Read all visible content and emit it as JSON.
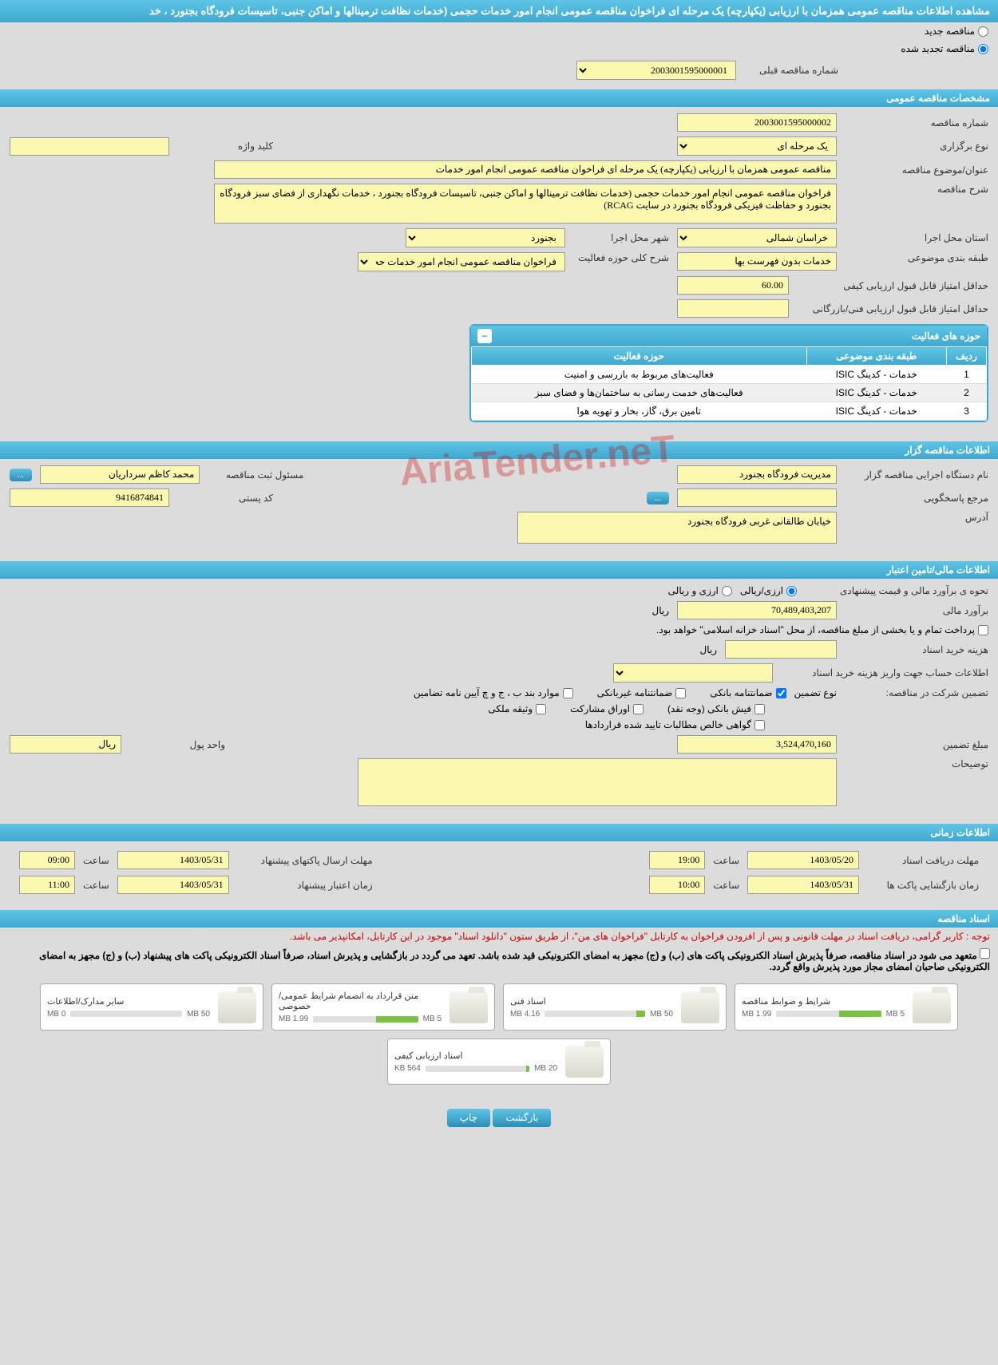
{
  "header": {
    "title": "مشاهده اطلاعات مناقصه عمومی همزمان با ارزیابی (یکپارچه) یک مرحله ای فراخوان مناقصه عمومی انجام امور خدمات حجمی (خدمات نظافت ترمینالها و اماکن جنبی، تاسیسات فرودگاه بجنورد ، خد"
  },
  "radio_options": {
    "new": "مناقصه جدید",
    "renewed": "مناقصه تجدید شده"
  },
  "prev_number": {
    "label": "شماره مناقصه قبلی",
    "value": "2003001595000001"
  },
  "sections": {
    "general": "مشخصات مناقصه عمومی",
    "holder": "اطلاعات مناقصه گزار",
    "financial": "اطلاعات مالی/تامین اعتبار",
    "time": "اطلاعات زمانی",
    "docs": "اسناد مناقصه"
  },
  "general": {
    "number_label": "شماره مناقصه",
    "number": "2003001595000002",
    "type_label": "نوع برگزاری",
    "type": "یک مرحله ای",
    "keyword_label": "کلید واژه",
    "keyword": "",
    "subject_label": "عنوان/موضوع مناقصه",
    "subject": "مناقصه عمومی همزمان با ارزیابی (یکپارچه) یک مرحله ای فراخوان مناقصه عمومی انجام امور خدمات",
    "desc_label": "شرح مناقصه",
    "desc": "فراخوان مناقصه عمومی انجام امور خدمات حجمی (خدمات نظافت ترمینالها و اماکن جنبی، تاسیسات فرودگاه بجنورد ، خدمات نگهداری از فضای سبز فرودگاه بجنورد و حفاظت فیزیکی فرودگاه بجنورد در سایت RCAG)",
    "province_label": "استان محل اجرا",
    "province": "خراسان شمالی",
    "city_label": "شهر محل اجرا",
    "city": "بجنورد",
    "category_label": "طبقه بندی موضوعی",
    "category": "خدمات بدون فهرست بها",
    "activity_desc_label": "شرح کلی حوزه فعالیت",
    "activity_desc": "فراخوان مناقصه عمومی انجام امور خدمات حجمی",
    "qual_score_label": "حداقل امتیاز قابل قبول ارزیابی کیفی",
    "qual_score": "60.00",
    "tech_score_label": "حداقل امتیاز قابل قبول ارزیابی فنی/بازرگانی",
    "tech_score": ""
  },
  "activities": {
    "title": "حوزه های فعالیت",
    "col_row": "ردیف",
    "col_category": "طبقه بندی موضوعی",
    "col_activity": "حوزه فعالیت",
    "rows": [
      {
        "n": "1",
        "cat": "خدمات - کدینگ ISIC",
        "act": "فعالیت‌های مربوط به بازرسی و امنیت"
      },
      {
        "n": "2",
        "cat": "خدمات - کدینگ ISIC",
        "act": "فعالیت‌های خدمت رسانی به ساختمان‌ها و فضای سبز"
      },
      {
        "n": "3",
        "cat": "خدمات - کدینگ ISIC",
        "act": "تامین برق، گاز، بخار و تهویه هوا"
      }
    ]
  },
  "holder": {
    "org_label": "نام دستگاه اجرایی مناقصه گزار",
    "org": "مدیریت فرودگاه بجنورد",
    "responsible_label": "مسئول ثبت مناقصه",
    "responsible": "محمد کاظم سرداریان",
    "contact_label": "مرجع پاسخگویی",
    "postal_label": "کد پستی",
    "postal": "9416874841",
    "address_label": "آدرس",
    "address": "خیابان طالقانی غربی فرودگاه بجنورد"
  },
  "financial": {
    "est_type_label": "نحوه ی برآورد مالی و قیمت پیشنهادی",
    "est_type_opt1": "ارزی/ریالی",
    "est_type_opt2": "ارزی و ریالی",
    "est_label": "برآورد مالی",
    "est": "70,489,403,207",
    "currency": "ریال",
    "pay_note": "پرداخت تمام و یا بخشی از مبلغ مناقصه، از محل \"اسناد خزانه اسلامی\" خواهد بود.",
    "cost_label": "هزینه خرید اسناد",
    "cost": "",
    "account_label": "اطلاعات حساب جهت واریز هزینه خرید اسناد",
    "guarantee_label": "تضمین شرکت در مناقصه:",
    "guarantee_type_label": "نوع تضمین",
    "g1": "ضمانتنامه بانکی",
    "g2": "ضمانتنامه غیربانکی",
    "g3": "موارد بند ب ، ج و چ آیین نامه تضامین",
    "g4": "فیش بانکی (وجه نقد)",
    "g5": "اوراق مشارکت",
    "g6": "وثیقه ملکی",
    "g7": "گواهی خالص مطالبات تایید شده قراردادها",
    "amount_label": "مبلغ تضمین",
    "amount": "3,524,470,160",
    "unit_label": "واحد پول",
    "unit": "ریال",
    "explain_label": "توضیحات"
  },
  "time": {
    "doc_deadline_label": "مهلت دریافت اسناد",
    "doc_deadline_date": "1403/05/20",
    "doc_deadline_time": "19:00",
    "time_label": "ساعت",
    "packet_deadline_label": "مهلت ارسال پاکتهای پیشنهاد",
    "packet_deadline_date": "1403/05/31",
    "packet_deadline_time": "09:00",
    "open_label": "زمان بازگشایی پاکت ها",
    "open_date": "1403/05/31",
    "open_time": "10:00",
    "validity_label": "زمان اعتبار پیشنهاد",
    "validity_date": "1403/05/31",
    "validity_time": "11:00"
  },
  "docs": {
    "note_red": "توجه : کاربر گرامی، دریافت اسناد در مهلت قانونی و پس از افزودن فراخوان به کارتابل \"فراخوان های من\"، از طریق ستون \"دانلود اسناد\" موجود در این کارتابل، امکانپذیر می باشد.",
    "note_black": "متعهد می شود در اسناد مناقصه، صرفاً پذیرش اسناد الکترونیکی پاکت های (ب) و (ج) مجهز به امضای الکترونیکی قید شده باشد. تعهد می گردد در بازگشایی و پذیرش اسناد، صرفاً اسناد الکترونیکی پاکت های پیشنهاد (ب) و (ج) مجهز به امضای الکترونیکی صاحبان امضای مجاز مورد پذیرش واقع گردد.",
    "items": [
      {
        "title": "شرایط و ضوابط مناقصه",
        "used": "1.99 MB",
        "total": "5 MB",
        "pct": 40
      },
      {
        "title": "اسناد فنی",
        "used": "4.16 MB",
        "total": "50 MB",
        "pct": 9
      },
      {
        "title": "متن قرارداد به انضمام شرایط عمومی/خصوصی",
        "used": "1.99 MB",
        "total": "5 MB",
        "pct": 40
      },
      {
        "title": "سایر مدارک/اطلاعات",
        "used": "0 MB",
        "total": "50 MB",
        "pct": 0
      },
      {
        "title": "اسناد ارزیابی کیفی",
        "used": "564 KB",
        "total": "20 MB",
        "pct": 3
      }
    ]
  },
  "buttons": {
    "back": "بازگشت",
    "print": "چاپ",
    "dots": "..."
  },
  "watermark": "AriaTender.neT",
  "colors": {
    "header_bg": "#40a8d0",
    "input_bg": "#fbf8b0",
    "body_bg": "#dcdcdc",
    "progress_fill": "#7ac142"
  }
}
